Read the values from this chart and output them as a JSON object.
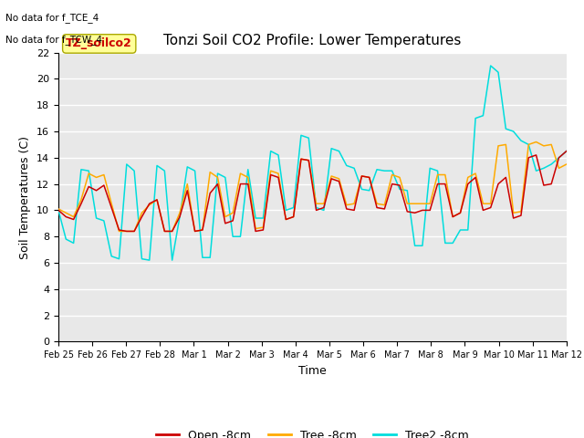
{
  "title": "Tonzi Soil CO2 Profile: Lower Temperatures",
  "ylabel": "Soil Temperatures (C)",
  "xlabel": "Time",
  "no_data_text_1": "No data for f_TCE_4",
  "no_data_text_2": "No data for f_TCW_4",
  "legend_box_label": "TZ_soilco2",
  "ylim": [
    0,
    22
  ],
  "yticks": [
    0,
    2,
    4,
    6,
    8,
    10,
    12,
    14,
    16,
    18,
    20,
    22
  ],
  "xtick_labels": [
    "Feb 25",
    "Feb 26",
    "Feb 27",
    "Feb 28",
    "Mar 1",
    "Mar 2",
    "Mar 3",
    "Mar 4",
    "Mar 5",
    "Mar 6",
    "Mar 7",
    "Mar 8",
    "Mar 9",
    "Mar 10",
    "Mar 11",
    "Mar 12"
  ],
  "colors": {
    "open": "#cc0000",
    "tree": "#ffaa00",
    "tree2": "#00dddd",
    "bg": "#e8e8e8",
    "legend_box_bg": "#ffff99",
    "legend_box_edge": "#aaa800"
  },
  "open_8cm": [
    10.0,
    9.5,
    9.3,
    10.5,
    11.8,
    11.5,
    11.9,
    10.2,
    8.5,
    8.4,
    8.4,
    9.5,
    10.5,
    10.8,
    8.4,
    8.4,
    9.5,
    11.5,
    8.4,
    8.5,
    11.3,
    12.0,
    9.0,
    9.2,
    12.0,
    12.0,
    8.4,
    8.5,
    12.7,
    12.5,
    9.3,
    9.5,
    13.9,
    13.8,
    10.0,
    10.2,
    12.4,
    12.2,
    10.1,
    10.0,
    12.6,
    12.5,
    10.2,
    10.1,
    12.0,
    11.9,
    9.9,
    9.8,
    10.0,
    10.0,
    12.0,
    12.0,
    9.5,
    9.8,
    12.0,
    12.5,
    10.0,
    10.2,
    12.0,
    12.5,
    9.4,
    9.6,
    14.0,
    14.2,
    11.9,
    12.0,
    14.0,
    14.5
  ],
  "tree_8cm": [
    10.1,
    9.8,
    9.5,
    10.8,
    12.8,
    12.5,
    12.7,
    10.5,
    8.4,
    8.4,
    8.4,
    9.8,
    10.4,
    10.8,
    8.4,
    8.4,
    9.8,
    12.0,
    8.4,
    8.5,
    12.9,
    12.5,
    9.5,
    9.8,
    12.8,
    12.5,
    8.6,
    8.7,
    13.0,
    12.8,
    9.3,
    9.5,
    13.9,
    13.8,
    10.5,
    10.5,
    12.6,
    12.4,
    10.4,
    10.5,
    12.6,
    12.5,
    10.5,
    10.4,
    12.7,
    12.5,
    10.5,
    10.5,
    10.5,
    10.5,
    12.7,
    12.7,
    9.5,
    9.8,
    12.5,
    12.8,
    10.5,
    10.5,
    14.9,
    15.0,
    9.8,
    9.9,
    15.0,
    15.2,
    14.9,
    15.0,
    13.2,
    13.5
  ],
  "tree2_8cm": [
    10.0,
    7.8,
    7.5,
    13.1,
    13.0,
    9.4,
    9.2,
    6.5,
    6.3,
    13.5,
    13.0,
    6.3,
    6.2,
    13.4,
    13.0,
    6.2,
    9.5,
    13.3,
    13.0,
    6.4,
    6.4,
    12.8,
    12.5,
    8.0,
    8.0,
    13.1,
    9.4,
    9.4,
    14.5,
    14.2,
    10.0,
    10.2,
    15.7,
    15.5,
    10.2,
    10.0,
    14.7,
    14.5,
    13.4,
    13.2,
    11.6,
    11.5,
    13.1,
    13.0,
    13.0,
    11.6,
    11.5,
    7.3,
    7.3,
    13.2,
    13.0,
    7.5,
    7.5,
    8.5,
    8.5,
    17.0,
    17.2,
    21.0,
    20.5,
    16.2,
    16.0,
    15.3,
    15.0,
    13.0,
    13.2,
    13.5,
    14.0,
    14.5
  ]
}
